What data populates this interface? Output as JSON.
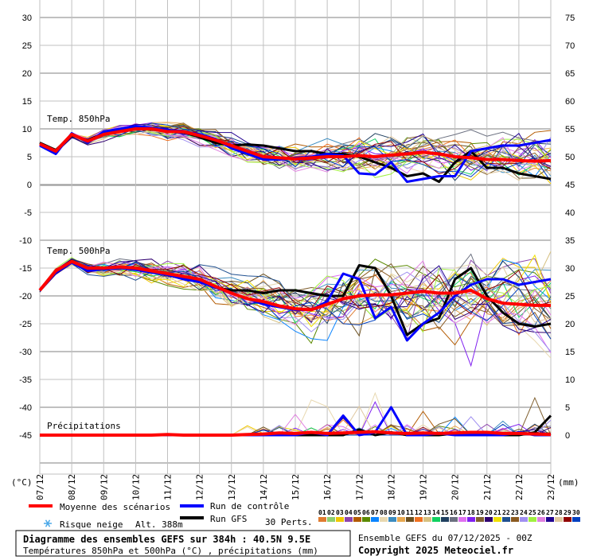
{
  "chart_data": {
    "type": "line",
    "title": "Diagramme des ensembles GEFS sur 384h : 40.5N 9.5E",
    "subtitle": "Températures 850hPa et 500hPa (°C) , précipitations (mm)",
    "run_info": "Ensemble GEFS du 07/12/2025 - 00Z",
    "copyright": "Copyright 2025 Meteociel.fr",
    "left_unit": "(°C)",
    "right_unit": "(mm)",
    "altitude": "Alt. 388m",
    "left_ticks": [
      "30",
      "25",
      "20",
      "15",
      "10",
      "5",
      "0",
      "-5",
      "-10",
      "-15",
      "-20",
      "-25",
      "-30",
      "-35",
      "-40",
      "-45"
    ],
    "left_tick_values": [
      30,
      25,
      20,
      15,
      10,
      5,
      0,
      -5,
      -10,
      -15,
      -20,
      -25,
      -30,
      -35,
      -40,
      -45
    ],
    "right_ticks": [
      "75",
      "70",
      "65",
      "60",
      "55",
      "50",
      "45",
      "40",
      "35",
      "30",
      "25",
      "20",
      "15",
      "10",
      "5",
      "0"
    ],
    "ylim": [
      -53,
      33
    ],
    "grid": true,
    "x_dates": [
      "07/12",
      "08/12",
      "09/12",
      "10/12",
      "11/12",
      "12/12",
      "13/12",
      "14/12",
      "15/12",
      "16/12",
      "17/12",
      "18/12",
      "19/12",
      "20/12",
      "21/12",
      "22/12",
      "23/12"
    ],
    "x_step_hours": 12,
    "panel_labels": {
      "t850": "Temp. 850hPa",
      "t500": "Temp. 500hPa",
      "precip": "Précipitations"
    },
    "precip_zero_left_value": -45,
    "members_count": 30,
    "series": {
      "t850": {
        "mean": [
          7.3,
          6.0,
          9.0,
          7.8,
          9.0,
          9.5,
          10.0,
          10.0,
          9.5,
          9.5,
          8.8,
          8.0,
          7.0,
          6.0,
          5.0,
          4.8,
          4.6,
          4.8,
          5.0,
          5.0,
          5.2,
          5.0,
          5.3,
          5.5,
          5.8,
          5.5,
          5.0,
          4.8,
          4.5,
          4.5,
          4.3,
          4.2,
          4.3
        ],
        "control": [
          7.0,
          5.5,
          9.2,
          7.5,
          9.5,
          10.0,
          10.5,
          10.2,
          9.8,
          9.6,
          9.0,
          8.2,
          6.5,
          5.5,
          4.5,
          4.5,
          4.8,
          5.0,
          5.5,
          5.2,
          2.0,
          1.8,
          4.0,
          0.5,
          1.0,
          1.5,
          1.5,
          6.0,
          6.5,
          7.0,
          7.0,
          7.5,
          8.0
        ],
        "gfs": [
          7.5,
          6.2,
          8.8,
          8.0,
          9.2,
          9.8,
          10.2,
          10.0,
          9.6,
          9.4,
          8.5,
          7.5,
          7.0,
          7.2,
          7.0,
          6.5,
          6.0,
          6.0,
          5.5,
          5.5,
          5.0,
          4.0,
          3.0,
          1.5,
          2.0,
          0.5,
          4.0,
          6.0,
          3.0,
          3.0,
          2.0,
          1.5,
          1.0
        ]
      },
      "t500": {
        "mean": [
          -19,
          -15.5,
          -13.8,
          -15,
          -15,
          -14.8,
          -15,
          -15.5,
          -16,
          -16.5,
          -17,
          -18.3,
          -19.5,
          -20.5,
          -21,
          -21.8,
          -22.3,
          -22.5,
          -21.5,
          -20.5,
          -20,
          -19.8,
          -19.8,
          -19.5,
          -19.2,
          -19.5,
          -19.5,
          -19,
          -20.5,
          -21.3,
          -21.5,
          -21.7,
          -21.7
        ],
        "control": [
          -19,
          -15.8,
          -14,
          -15.5,
          -15.2,
          -15,
          -15.3,
          -15.8,
          -16.2,
          -17,
          -17.5,
          -18.5,
          -19.5,
          -20.5,
          -21.5,
          -22,
          -22.5,
          -22.5,
          -21,
          -16,
          -17,
          -24,
          -22,
          -28,
          -25,
          -23,
          -20,
          -18,
          -17,
          -17,
          -18,
          -17.5,
          -17
        ],
        "gfs": [
          -19,
          -15.5,
          -13.7,
          -15,
          -15,
          -14.8,
          -15.2,
          -15.6,
          -16.2,
          -16.8,
          -17.5,
          -18.5,
          -19,
          -19,
          -19.5,
          -19,
          -19,
          -19.5,
          -20,
          -20,
          -14.5,
          -15,
          -20,
          -27,
          -25,
          -24,
          -17,
          -15,
          -20,
          -23,
          -25,
          -25.5,
          -25
        ]
      },
      "precip": {
        "mean": [
          0,
          0,
          0,
          0,
          0,
          0,
          0,
          0,
          0.1,
          0,
          0,
          0,
          0,
          0.1,
          0.2,
          0.4,
          0.3,
          0.5,
          0.3,
          0.4,
          0.5,
          0.6,
          0.4,
          0.3,
          0.4,
          0.3,
          0.4,
          0.5,
          0.5,
          0.3,
          0.3,
          0.2,
          0.1
        ],
        "control": [
          0,
          0,
          0,
          0,
          0,
          0,
          0,
          0,
          0,
          0,
          0,
          0,
          0,
          0,
          0,
          0,
          0,
          0.5,
          0,
          3.5,
          0,
          0.5,
          5,
          0,
          0,
          0.3,
          0,
          0,
          0,
          0,
          0.5,
          0,
          0
        ],
        "gfs": [
          0,
          0,
          0,
          0,
          0,
          0,
          0,
          0,
          0,
          0,
          0,
          0,
          0,
          0,
          0,
          0.3,
          0,
          0,
          0,
          0,
          1,
          0,
          0.5,
          0,
          0,
          0,
          0.3,
          0,
          0,
          0,
          0,
          0.5,
          3.5
        ]
      }
    },
    "legend": {
      "mean_label": "Moyenne des scénarios",
      "control_label": "Run de contrôle",
      "gfs_label": "Run GFS",
      "snow_label": "Risque neige",
      "perts_label": "30 Perts.",
      "member_ids": [
        "01",
        "02",
        "03",
        "04",
        "05",
        "06",
        "07",
        "08",
        "09",
        "10",
        "11",
        "12",
        "13",
        "14",
        "15",
        "16",
        "17",
        "18",
        "19",
        "20",
        "21",
        "22",
        "23",
        "24",
        "25",
        "26",
        "27",
        "28",
        "29",
        "30"
      ],
      "member_colors": [
        "#e07b30",
        "#8fcf6f",
        "#f0c800",
        "#8e44ad",
        "#b35a00",
        "#5a8a00",
        "#0a84ff",
        "#e8d8b0",
        "#3c8cbf",
        "#e8a850",
        "#6b5020",
        "#f07020",
        "#d6c080",
        "#10d060",
        "#204060",
        "#6b7080",
        "#e070f0",
        "#8020f0",
        "#806030",
        "#300070",
        "#f0e000",
        "#205090",
        "#8a5a20",
        "#a090f0",
        "#a0f040",
        "#e080e0",
        "#200090",
        "#e0c8a0",
        "#900000",
        "#0040c0"
      ]
    },
    "colors": {
      "mean": "#ff0000",
      "control": "#0000ff",
      "gfs": "#000000",
      "grid": "#c0c0c0"
    }
  }
}
